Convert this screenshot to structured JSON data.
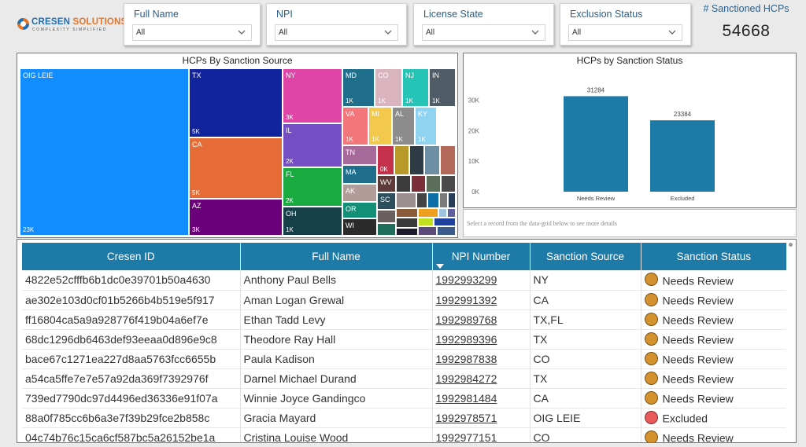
{
  "logo": {
    "name_part1": "CRESEN ",
    "name_part2": "SOLUTIONS",
    "tagline": "COMPLEXITY SIMPLIFIED"
  },
  "filters": [
    {
      "label": "Full Name",
      "value": "All"
    },
    {
      "label": "NPI",
      "value": "All"
    },
    {
      "label": "License State",
      "value": "All"
    },
    {
      "label": "Exclusion Status",
      "value": "All"
    }
  ],
  "kpi": {
    "label": "# Sanctioned HCPs",
    "value": "54668"
  },
  "treemap": {
    "title": "HCPs By Sanction Source",
    "tiles": [
      {
        "name": "OIG LEIE",
        "value": "23K",
        "color": "#118dff"
      },
      {
        "name": "TX",
        "value": "5K",
        "color": "#12239e"
      },
      {
        "name": "CA",
        "value": "5K",
        "color": "#e66c37"
      },
      {
        "name": "AZ",
        "value": "3K",
        "color": "#6b007b"
      },
      {
        "name": "NY",
        "value": "3K",
        "color": "#e044a7"
      },
      {
        "name": "IL",
        "value": "2K",
        "color": "#744ec2"
      },
      {
        "name": "FL",
        "value": "2K",
        "color": "#1aab40"
      },
      {
        "name": "OH",
        "value": "1K",
        "color": "#15404a"
      },
      {
        "name": "MD",
        "value": "1K",
        "color": "#1f6e8c"
      },
      {
        "name": "CO",
        "value": "1K",
        "color": "#d9b3bd"
      },
      {
        "name": "NJ",
        "value": "1K",
        "color": "#26c4b7"
      },
      {
        "name": "IN",
        "value": "1K",
        "color": "#4f5b66"
      },
      {
        "name": "VA",
        "value": "1K",
        "color": "#f2767a"
      },
      {
        "name": "MI",
        "value": "1K",
        "color": "#f2c94c"
      },
      {
        "name": "AL",
        "value": "1K",
        "color": "#8c8c8c"
      },
      {
        "name": "KY",
        "value": "1K",
        "color": "#8fd3f0"
      },
      {
        "name": "TN",
        "value": "",
        "color": "#a66999"
      },
      {
        "name": "",
        "value": "0K",
        "color": "#c4314b"
      },
      {
        "name": "MA",
        "value": "",
        "color": "#1f6e8c"
      },
      {
        "name": "AK",
        "value": "",
        "color": "#b19c9a"
      },
      {
        "name": "WV",
        "value": "",
        "color": "#5e3a3a"
      },
      {
        "name": "OR",
        "value": "",
        "color": "#148f77"
      },
      {
        "name": "SC",
        "value": "",
        "color": "#2c4f5e"
      },
      {
        "name": "WI",
        "value": "",
        "color": "#2b2b2b"
      }
    ]
  },
  "bar_chart": {
    "title": "HCPs by Sanction Status",
    "hint": "Select a record from the data-grid below to see more details",
    "color": "#1e7aa6"
  },
  "chart_data": {
    "type": "bar",
    "title": "HCPs by Sanction Status",
    "categories": [
      "Needs Review",
      "Excluded"
    ],
    "values": [
      31284,
      23384
    ],
    "data_labels": [
      "31284",
      "23384"
    ],
    "ylim": [
      0,
      35000
    ],
    "yticks": [
      0,
      10000,
      20000,
      30000
    ],
    "ytick_labels": [
      "0K",
      "10K",
      "20K",
      "30K"
    ],
    "xlabel": "",
    "ylabel": "",
    "grid": false
  },
  "table": {
    "columns": [
      "Cresen ID",
      "Full Name",
      "NPI Number",
      "Sanction Source",
      "Sanction Status"
    ],
    "status_colors": {
      "Needs Review": "#d4922f",
      "Excluded": "#ea5a5a"
    },
    "rows": [
      {
        "id": "4822e52cfffb6b1dc0e39701b50a4630",
        "name": "Anthony Paul Bells",
        "npi": "1992993299",
        "source": "NY",
        "status": "Needs Review"
      },
      {
        "id": "ae302e103d0cf01b5266b4b519e5f917",
        "name": "Aman Logan Grewal",
        "npi": "1992991392",
        "source": "CA",
        "status": "Needs Review"
      },
      {
        "id": "ff16804ca5a9a928776f419b04a6ef7e",
        "name": "Ethan Tadd Levy",
        "npi": "1992989768",
        "source": "TX,FL",
        "status": "Needs Review"
      },
      {
        "id": "68dc1296db6463def93eeaa0d896e9c8",
        "name": "Theodore Ray Hall",
        "npi": "1992989396",
        "source": "TX",
        "status": "Needs Review"
      },
      {
        "id": "bace67c1271ea227d8aa5763fcc6655b",
        "name": "Paula Kadison",
        "npi": "1992987838",
        "source": "CO",
        "status": "Needs Review"
      },
      {
        "id": "a54ca5ffe7e7e57a92da369f7392976f",
        "name": "Darnel Michael Durand",
        "npi": "1992984272",
        "source": "TX",
        "status": "Needs Review"
      },
      {
        "id": "739ed7790dc97d4496ed36336e91f07a",
        "name": "Winnie Joyce Gandingco",
        "npi": "1992981484",
        "source": "CA",
        "status": "Needs Review"
      },
      {
        "id": "88a0f785cc6b6a3e7f39b29fce2b858c",
        "name": "Gracia Mayard",
        "npi": "1992978571",
        "source": "OIG LEIE",
        "status": "Excluded"
      },
      {
        "id": "04c74b76c15ca6cf587bc5a26152be1a",
        "name": "Cristina Louise Wood",
        "npi": "1992977151",
        "source": "CO",
        "status": "Needs Review"
      }
    ]
  }
}
